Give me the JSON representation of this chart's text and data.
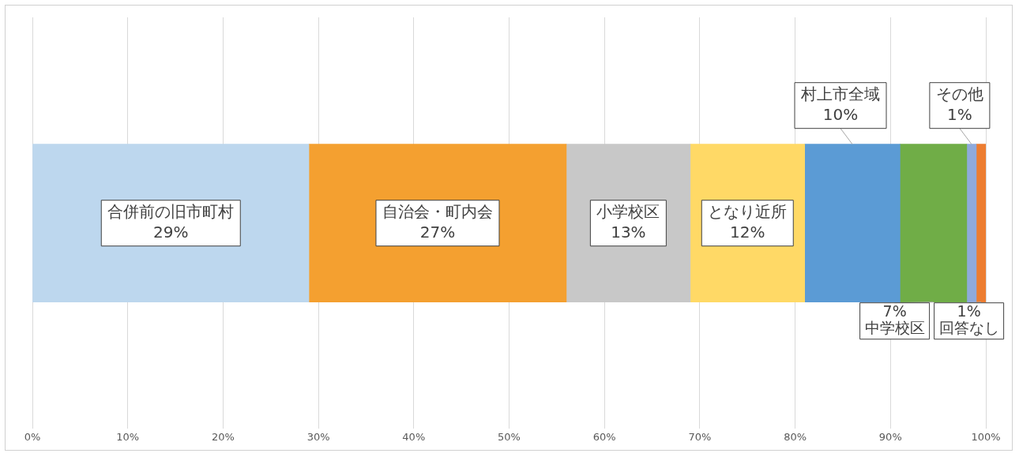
{
  "chart_data": {
    "type": "bar",
    "orientation": "horizontal",
    "stacked": true,
    "categories": [
      null
    ],
    "series": [
      {
        "name": "合併前の旧市町村",
        "color": "#bdd7ee",
        "values": [
          29
        ],
        "value_labels": [
          "29%"
        ]
      },
      {
        "name": "自治会・町内会",
        "color": "#f4a030",
        "values": [
          27
        ],
        "value_labels": [
          "27%"
        ]
      },
      {
        "name": "小学校区",
        "color": "#c8c8c8",
        "values": [
          13
        ],
        "value_labels": [
          "13%"
        ]
      },
      {
        "name": "となり近所",
        "color": "#ffd966",
        "values": [
          12
        ],
        "value_labels": [
          "12%"
        ]
      },
      {
        "name": "村上市全域",
        "color": "#5b9bd5",
        "values": [
          10
        ],
        "value_labels": [
          "10%"
        ]
      },
      {
        "name": "中学校区",
        "color": "#70ad47",
        "values": [
          7
        ],
        "value_labels": [
          "7%"
        ]
      },
      {
        "name": "その他",
        "color": "#8faadc",
        "values": [
          1
        ],
        "value_labels": [
          "1%"
        ]
      },
      {
        "name": "回答なし",
        "color": "#ed7d31",
        "values": [
          1
        ],
        "value_labels": [
          "1%"
        ]
      }
    ],
    "xlim": [
      0,
      100
    ],
    "xticks": [
      {
        "value": 0,
        "label": "0%"
      },
      {
        "value": 10,
        "label": "10%"
      },
      {
        "value": 20,
        "label": "20%"
      },
      {
        "value": 30,
        "label": "30%"
      },
      {
        "value": 40,
        "label": "40%"
      },
      {
        "value": 50,
        "label": "50%"
      },
      {
        "value": 60,
        "label": "60%"
      },
      {
        "value": 70,
        "label": "70%"
      },
      {
        "value": 80,
        "label": "80%"
      },
      {
        "value": 90,
        "label": "90%"
      },
      {
        "value": 100,
        "label": "100%"
      }
    ],
    "grid": "x",
    "legend": false
  }
}
